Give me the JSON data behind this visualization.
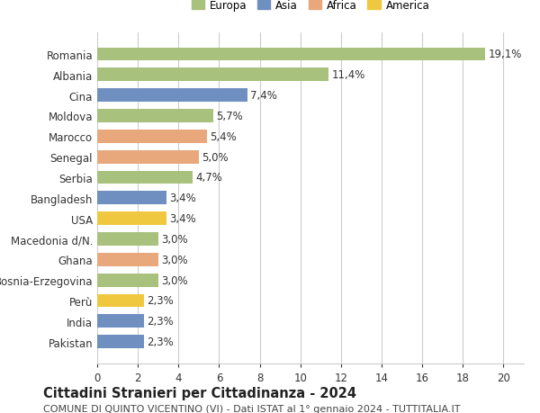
{
  "countries": [
    "Romania",
    "Albania",
    "Cina",
    "Moldova",
    "Marocco",
    "Senegal",
    "Serbia",
    "Bangladesh",
    "USA",
    "Macedonia d/N.",
    "Ghana",
    "Bosnia-Erzegovina",
    "Perù",
    "India",
    "Pakistan"
  ],
  "values": [
    19.1,
    11.4,
    7.4,
    5.7,
    5.4,
    5.0,
    4.7,
    3.4,
    3.4,
    3.0,
    3.0,
    3.0,
    2.3,
    2.3,
    2.3
  ],
  "labels": [
    "19,1%",
    "11,4%",
    "7,4%",
    "5,7%",
    "5,4%",
    "5,0%",
    "4,7%",
    "3,4%",
    "3,4%",
    "3,0%",
    "3,0%",
    "3,0%",
    "2,3%",
    "2,3%",
    "2,3%"
  ],
  "continents": [
    "Europa",
    "Europa",
    "Asia",
    "Europa",
    "Africa",
    "Africa",
    "Europa",
    "Asia",
    "America",
    "Europa",
    "Africa",
    "Europa",
    "America",
    "Asia",
    "Asia"
  ],
  "colors": {
    "Europa": "#a8c17c",
    "Asia": "#6f8fc0",
    "Africa": "#e8a87c",
    "America": "#f0c840"
  },
  "legend_colors": {
    "Europa": "#a8c17c",
    "Asia": "#6f8fc0",
    "Africa": "#e8a87c",
    "America": "#f0c840"
  },
  "xlim": [
    0,
    21
  ],
  "xticks": [
    0,
    2,
    4,
    6,
    8,
    10,
    12,
    14,
    16,
    18,
    20
  ],
  "title": "Cittadini Stranieri per Cittadinanza - 2024",
  "subtitle": "COMUNE DI QUINTO VICENTINO (VI) - Dati ISTAT al 1° gennaio 2024 - TUTTITALIA.IT",
  "background_color": "#ffffff",
  "grid_color": "#cccccc",
  "bar_height": 0.65,
  "label_fontsize": 8.5,
  "tick_fontsize": 8.5,
  "title_fontsize": 10.5,
  "subtitle_fontsize": 8
}
